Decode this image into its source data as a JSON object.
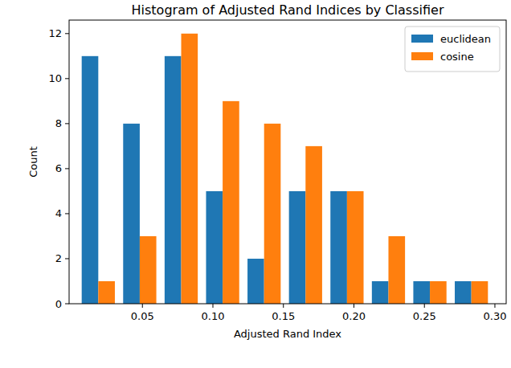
{
  "chart_data": {
    "type": "histogram",
    "title": "Histogram of Adjusted Rand Indices by Classifier",
    "x_label": "Adjusted Rand Index",
    "y_label": "Count",
    "bins": [
      0.004,
      0.0334,
      0.0628,
      0.0922,
      0.1216,
      0.151,
      0.1804,
      0.2098,
      0.2392,
      0.2686,
      0.298
    ],
    "series": [
      {
        "name": "euclidean",
        "color": "#1f77b4",
        "values": [
          11,
          8,
          11,
          5,
          2,
          5,
          5,
          1,
          1,
          1
        ]
      },
      {
        "name": "cosine",
        "color": "#ff7f0e",
        "values": [
          1,
          3,
          12,
          9,
          8,
          7,
          5,
          3,
          1,
          1
        ]
      }
    ],
    "xlim": [
      -0.002,
      0.308
    ],
    "xticks": [
      {
        "value": 0.05,
        "label": "0.05"
      },
      {
        "value": 0.1,
        "label": "0.10"
      },
      {
        "value": 0.15,
        "label": "0.15"
      },
      {
        "value": 0.2,
        "label": "0.20"
      },
      {
        "value": 0.25,
        "label": "0.25"
      },
      {
        "value": 0.3,
        "label": "0.30"
      }
    ],
    "ylim": [
      0,
      12.6
    ],
    "yticks": [
      0,
      2,
      4,
      6,
      8,
      10,
      12
    ],
    "legend": "upper right",
    "grid": false
  }
}
